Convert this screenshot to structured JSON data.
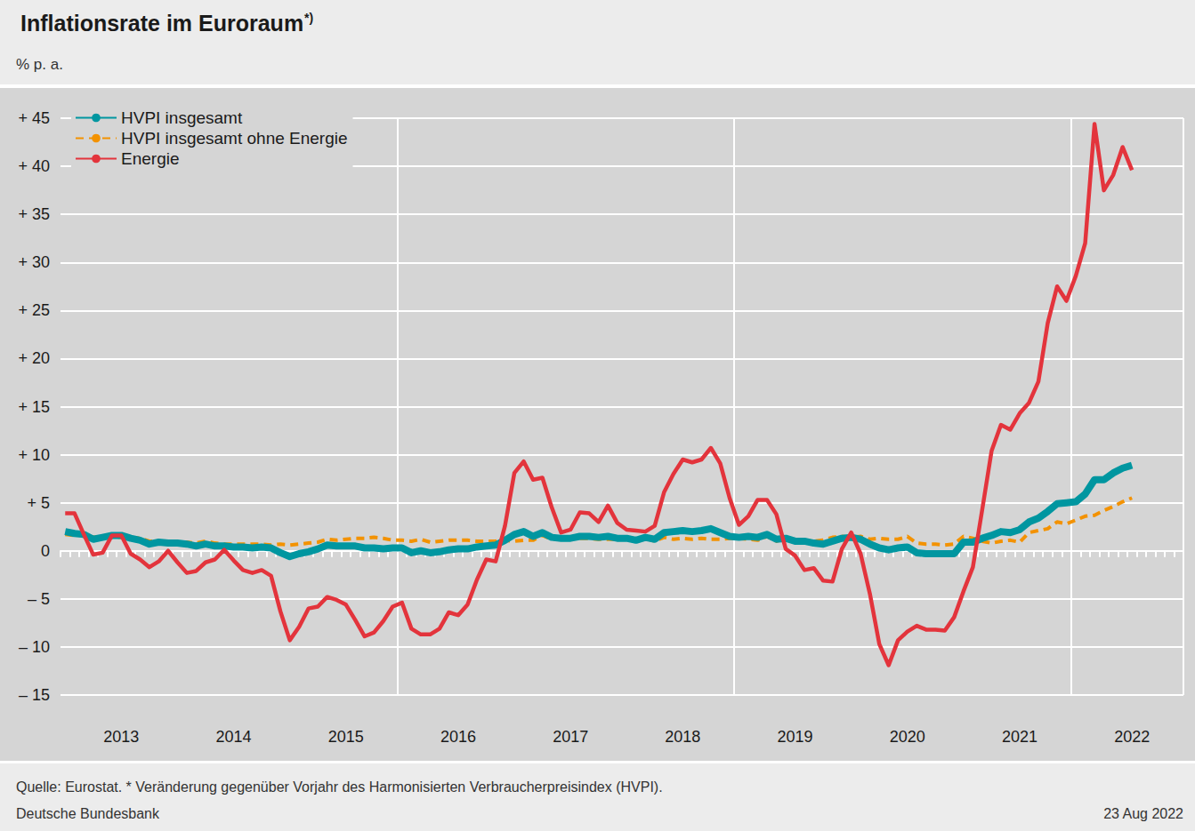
{
  "chart_data": {
    "type": "line",
    "title": "Inflationsrate im Euroraum",
    "title_superscript": "*)",
    "subtitle": "% p. a.",
    "footnote": "Quelle: Eurostat. * Veränderung gegenüber Vorjahr des Harmonisierten Verbraucherpreisindex (HVPI).",
    "source": "Deutsche Bundesbank",
    "date": "23 Aug 2022",
    "grid": true,
    "legend": "top-left",
    "categories": [
      null,
      null,
      null,
      null,
      null,
      null,
      "2013",
      null,
      null,
      null,
      null,
      null,
      null,
      null,
      null,
      null,
      null,
      null,
      "2014",
      null,
      null,
      null,
      null,
      null,
      null,
      null,
      null,
      null,
      null,
      null,
      "2015",
      null,
      null,
      null,
      null,
      null,
      null,
      null,
      null,
      null,
      null,
      null,
      "2016",
      null,
      null,
      null,
      null,
      null,
      null,
      null,
      null,
      null,
      null,
      null,
      "2017",
      null,
      null,
      null,
      null,
      null,
      null,
      null,
      null,
      null,
      null,
      null,
      "2018",
      null,
      null,
      null,
      null,
      null,
      null,
      null,
      null,
      null,
      null,
      null,
      "2019",
      null,
      null,
      null,
      null,
      null,
      null,
      null,
      null,
      null,
      null,
      null,
      "2020",
      null,
      null,
      null,
      null,
      null,
      null,
      null,
      null,
      null,
      null,
      null,
      "2021",
      null,
      null,
      null,
      null,
      null,
      null,
      null,
      null,
      null,
      null,
      null,
      "2022",
      null,
      null,
      null,
      null,
      null
    ],
    "ylim": [
      -15,
      45
    ],
    "yticks": [
      {
        "value": -15,
        "label": "– 15"
      },
      {
        "value": -10,
        "label": "– 10"
      },
      {
        "value": -5,
        "label": "– 5"
      },
      0,
      {
        "value": 5,
        "label": "+ 5"
      },
      {
        "value": 10,
        "label": "+ 10"
      },
      {
        "value": 15,
        "label": "+ 15"
      },
      {
        "value": 20,
        "label": "+ 20"
      },
      {
        "value": 25,
        "label": "+ 25"
      },
      {
        "value": 30,
        "label": "+ 30"
      },
      {
        "value": 35,
        "label": "+ 35"
      },
      {
        "value": 40,
        "label": "+ 40"
      },
      {
        "value": 45,
        "label": "+ 45"
      }
    ],
    "series": [
      {
        "name": "HVPI insgesamt",
        "color": "#0096a0",
        "line_style": "solid",
        "values": [
          2.0,
          1.8,
          1.7,
          1.2,
          1.4,
          1.6,
          1.6,
          1.3,
          1.1,
          0.7,
          0.9,
          0.8,
          0.8,
          0.7,
          0.5,
          0.7,
          0.5,
          0.5,
          0.4,
          0.4,
          0.3,
          0.4,
          0.3,
          -0.2,
          -0.6,
          -0.3,
          -0.1,
          0.2,
          0.6,
          0.5,
          0.5,
          0.5,
          0.3,
          0.3,
          0.2,
          0.3,
          0.3,
          -0.2,
          0.0,
          -0.2,
          -0.1,
          0.1,
          0.2,
          0.2,
          0.4,
          0.5,
          0.6,
          1.1,
          1.7,
          2.0,
          1.5,
          1.9,
          1.4,
          1.3,
          1.3,
          1.5,
          1.5,
          1.4,
          1.5,
          1.3,
          1.3,
          1.1,
          1.4,
          1.2,
          1.9,
          2.0,
          2.1,
          2.0,
          2.1,
          2.3,
          1.9,
          1.5,
          1.4,
          1.5,
          1.4,
          1.7,
          1.2,
          1.3,
          1.0,
          1.0,
          0.8,
          0.7,
          1.0,
          1.3,
          1.4,
          1.2,
          0.7,
          0.3,
          0.1,
          0.3,
          0.4,
          -0.2,
          -0.3,
          -0.3,
          -0.3,
          -0.3,
          0.9,
          0.9,
          1.3,
          1.6,
          2.0,
          1.9,
          2.2,
          3.0,
          3.4,
          4.1,
          4.9,
          5.0,
          5.1,
          5.9,
          7.4,
          7.4,
          8.1,
          8.6,
          8.9,
          null,
          null,
          null,
          null,
          null
        ]
      },
      {
        "name": "HVPI insgesamt ohne Energie",
        "color": "#f39200",
        "line_style": "dashed",
        "values": [
          1.7,
          1.6,
          1.7,
          1.4,
          1.5,
          1.4,
          1.4,
          1.4,
          1.3,
          1.0,
          1.0,
          0.9,
          0.9,
          0.9,
          0.8,
          1.0,
          0.8,
          0.7,
          0.7,
          0.7,
          0.7,
          0.7,
          0.6,
          0.7,
          0.6,
          0.7,
          0.8,
          0.9,
          1.2,
          1.1,
          1.2,
          1.3,
          1.3,
          1.4,
          1.3,
          1.1,
          1.1,
          1.0,
          1.2,
          0.9,
          1.0,
          1.1,
          1.1,
          1.1,
          1.0,
          1.0,
          1.0,
          1.1,
          1.0,
          1.1,
          1.1,
          1.6,
          1.2,
          1.3,
          1.3,
          1.3,
          1.3,
          1.2,
          1.2,
          1.2,
          1.2,
          1.1,
          1.3,
          1.0,
          1.4,
          1.2,
          1.3,
          1.2,
          1.3,
          1.2,
          1.2,
          1.3,
          1.3,
          1.2,
          1.1,
          1.5,
          1.0,
          1.3,
          1.1,
          1.1,
          1.0,
          1.1,
          1.4,
          1.5,
          1.4,
          1.5,
          1.2,
          1.3,
          1.2,
          1.2,
          1.5,
          0.8,
          0.7,
          0.7,
          0.6,
          0.7,
          1.5,
          1.3,
          1.0,
          0.8,
          1.0,
          1.1,
          0.9,
          1.9,
          2.1,
          2.3,
          3.0,
          2.8,
          3.2,
          3.6,
          3.7,
          4.2,
          4.6,
          5.1,
          5.5,
          null,
          null,
          null,
          null,
          null
        ]
      },
      {
        "name": "Energie",
        "color": "#e3343c",
        "line_style": "solid",
        "values": [
          3.9,
          3.9,
          1.7,
          -0.4,
          -0.2,
          1.6,
          1.6,
          -0.3,
          -0.9,
          -1.7,
          -1.1,
          0.0,
          -1.2,
          -2.3,
          -2.1,
          -1.2,
          -0.9,
          0.1,
          -1.0,
          -2.0,
          -2.3,
          -2.0,
          -2.6,
          -6.3,
          -9.3,
          -7.9,
          -6.0,
          -5.8,
          -4.8,
          -5.1,
          -5.6,
          -7.2,
          -8.9,
          -8.5,
          -7.3,
          -5.8,
          -5.4,
          -8.1,
          -8.7,
          -8.7,
          -8.1,
          -6.4,
          -6.7,
          -5.6,
          -3.0,
          -0.9,
          -1.1,
          2.6,
          8.1,
          9.3,
          7.4,
          7.6,
          4.5,
          1.9,
          2.2,
          4.0,
          3.9,
          3.0,
          4.7,
          2.9,
          2.2,
          2.1,
          2.0,
          2.6,
          6.1,
          8.0,
          9.5,
          9.2,
          9.5,
          10.7,
          9.1,
          5.5,
          2.7,
          3.6,
          5.3,
          5.3,
          3.8,
          0.2,
          -0.5,
          -2.0,
          -1.8,
          -3.1,
          -3.2,
          0.2,
          1.9,
          -0.3,
          -4.5,
          -9.7,
          -11.9,
          -9.3,
          -8.4,
          -7.8,
          -8.2,
          -8.2,
          -8.3,
          -6.9,
          -4.2,
          -1.7,
          4.3,
          10.4,
          13.1,
          12.6,
          14.3,
          15.4,
          17.6,
          23.7,
          27.5,
          26.0,
          28.6,
          32.0,
          44.4,
          37.5,
          39.1,
          42.0,
          39.6,
          null,
          null,
          null,
          null,
          null
        ]
      }
    ]
  }
}
